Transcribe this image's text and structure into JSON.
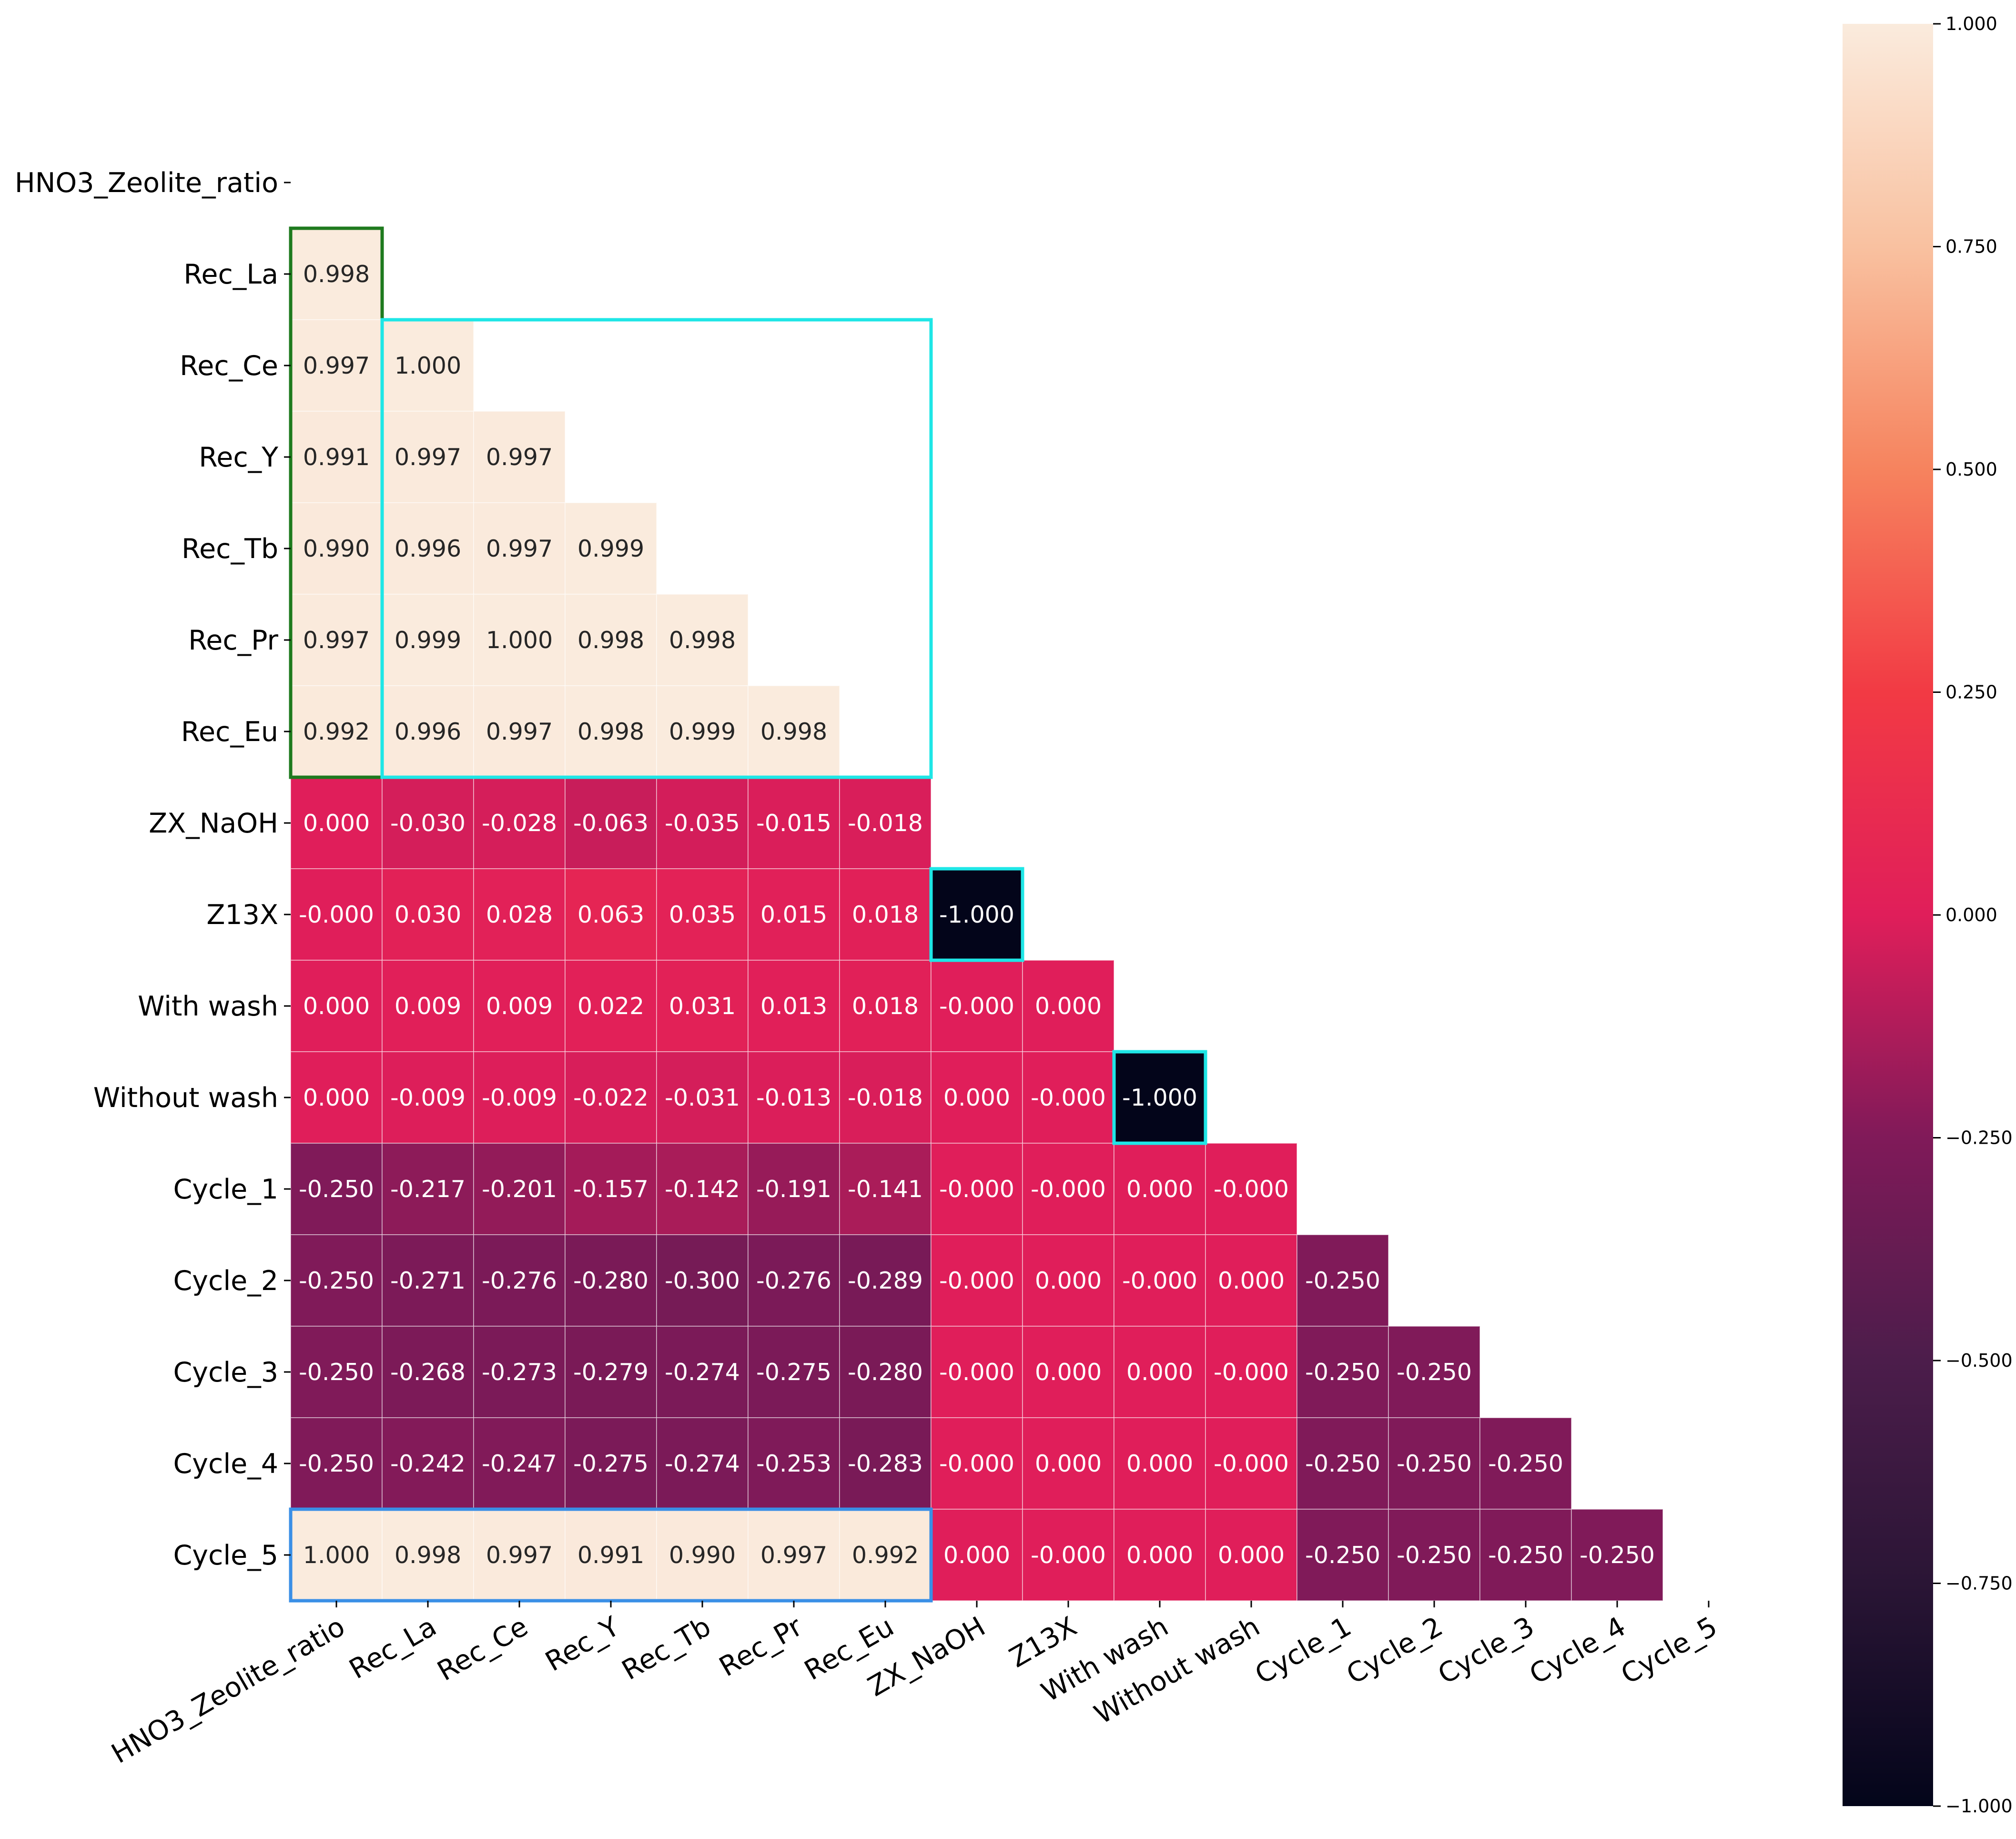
{
  "chart_data": {
    "type": "heatmap",
    "title": "",
    "xlabel": "",
    "ylabel": "",
    "mask": "upper-triangle-including-diagonal",
    "variables": [
      "HNO3_Zeolite_ratio",
      "Rec_La",
      "Rec_Ce",
      "Rec_Y",
      "Rec_Tb",
      "Rec_Pr",
      "Rec_Eu",
      "ZX_NaOH",
      "Z13X",
      "With wash",
      "Without wash",
      "Cycle_1",
      "Cycle_2",
      "Cycle_3",
      "Cycle_4",
      "Cycle_5"
    ],
    "rows": [
      {
        "label": "HNO3_Zeolite_ratio",
        "values": []
      },
      {
        "label": "Rec_La",
        "values": [
          "0.998"
        ]
      },
      {
        "label": "Rec_Ce",
        "values": [
          "0.997",
          "1.000"
        ]
      },
      {
        "label": "Rec_Y",
        "values": [
          "0.991",
          "0.997",
          "0.997"
        ]
      },
      {
        "label": "Rec_Tb",
        "values": [
          "0.990",
          "0.996",
          "0.997",
          "0.999"
        ]
      },
      {
        "label": "Rec_Pr",
        "values": [
          "0.997",
          "0.999",
          "1.000",
          "0.998",
          "0.998"
        ]
      },
      {
        "label": "Rec_Eu",
        "values": [
          "0.992",
          "0.996",
          "0.997",
          "0.998",
          "0.999",
          "0.998"
        ]
      },
      {
        "label": "ZX_NaOH",
        "values": [
          "0.000",
          "-0.030",
          "-0.028",
          "-0.063",
          "-0.035",
          "-0.015",
          "-0.018"
        ]
      },
      {
        "label": "Z13X",
        "values": [
          "-0.000",
          "0.030",
          "0.028",
          "0.063",
          "0.035",
          "0.015",
          "0.018",
          "-1.000"
        ]
      },
      {
        "label": "With wash",
        "values": [
          "0.000",
          "0.009",
          "0.009",
          "0.022",
          "0.031",
          "0.013",
          "0.018",
          "-0.000",
          "0.000"
        ]
      },
      {
        "label": "Without wash",
        "values": [
          "0.000",
          "-0.009",
          "-0.009",
          "-0.022",
          "-0.031",
          "-0.013",
          "-0.018",
          "0.000",
          "-0.000",
          "-1.000"
        ]
      },
      {
        "label": "Cycle_1",
        "values": [
          "-0.250",
          "-0.217",
          "-0.201",
          "-0.157",
          "-0.142",
          "-0.191",
          "-0.141",
          "-0.000",
          "-0.000",
          "0.000",
          "-0.000"
        ]
      },
      {
        "label": "Cycle_2",
        "values": [
          "-0.250",
          "-0.271",
          "-0.276",
          "-0.280",
          "-0.300",
          "-0.276",
          "-0.289",
          "-0.000",
          "0.000",
          "-0.000",
          "0.000",
          "-0.250"
        ]
      },
      {
        "label": "Cycle_3",
        "values": [
          "-0.250",
          "-0.268",
          "-0.273",
          "-0.279",
          "-0.274",
          "-0.275",
          "-0.280",
          "-0.000",
          "0.000",
          "0.000",
          "-0.000",
          "-0.250",
          "-0.250"
        ]
      },
      {
        "label": "Cycle_4",
        "values": [
          "-0.250",
          "-0.242",
          "-0.247",
          "-0.275",
          "-0.274",
          "-0.253",
          "-0.283",
          "-0.000",
          "0.000",
          "0.000",
          "-0.000",
          "-0.250",
          "-0.250",
          "-0.250"
        ]
      },
      {
        "label": "Cycle_5",
        "values": [
          "1.000",
          "0.998",
          "0.997",
          "0.991",
          "0.990",
          "0.997",
          "0.992",
          "0.000",
          "-0.000",
          "0.000",
          "0.000",
          "-0.250",
          "-0.250",
          "-0.250",
          "-0.250"
        ]
      }
    ],
    "colorbar": {
      "range": [
        -1,
        1
      ],
      "ticks": [
        "1.000",
        "0.750",
        "0.500",
        "0.250",
        "0.000",
        "−0.250",
        "−0.500",
        "−0.750",
        "−1.000"
      ]
    },
    "highlights": [
      {
        "rows": [
          1,
          6
        ],
        "cols": [
          0,
          0
        ],
        "color": "#1e7a1e"
      },
      {
        "rows": [
          2,
          6
        ],
        "cols": [
          1,
          6
        ],
        "color": "#1ee6e6"
      },
      {
        "rows": [
          8,
          8
        ],
        "cols": [
          7,
          7
        ],
        "color": "#1ee6e6"
      },
      {
        "rows": [
          10,
          10
        ],
        "cols": [
          9,
          9
        ],
        "color": "#1ee6e6"
      },
      {
        "rows": [
          15,
          15
        ],
        "cols": [
          0,
          6
        ],
        "color": "#3a8fe6"
      }
    ],
    "colormap": "rocket"
  }
}
